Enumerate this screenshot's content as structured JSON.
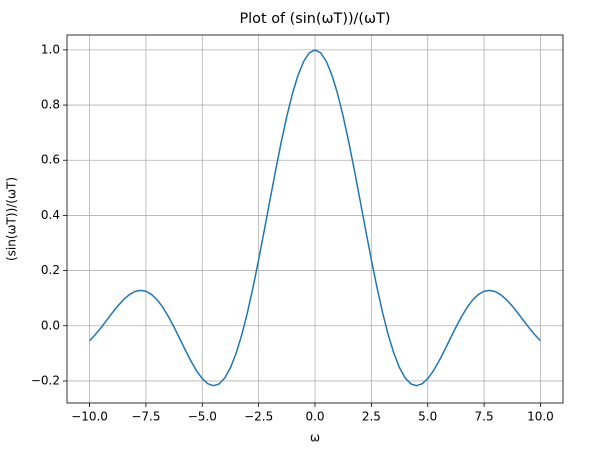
{
  "chart_data": {
    "type": "line",
    "title": "Plot of (sin(ωT))/(ωT)",
    "x_label": "ω",
    "y_label": "(sin(ωT))/(ωT)",
    "x": [
      -10,
      -9.75,
      -9.5,
      -9.25,
      -9,
      -8.75,
      -8.5,
      -8.25,
      -8,
      -7.75,
      -7.5,
      -7.25,
      -7,
      -6.75,
      -6.5,
      -6.25,
      -6,
      -5.75,
      -5.5,
      -5.25,
      -5,
      -4.75,
      -4.5,
      -4.25,
      -4,
      -3.75,
      -3.5,
      -3.25,
      -3,
      -2.75,
      -2.5,
      -2.25,
      -2,
      -1.75,
      -1.5,
      -1.25,
      -1,
      -0.75,
      -0.5,
      -0.25,
      0,
      0.25,
      0.5,
      0.75,
      1,
      1.25,
      1.5,
      1.75,
      2,
      2.25,
      2.5,
      2.75,
      3,
      3.25,
      3.5,
      3.75,
      4,
      4.25,
      4.5,
      4.75,
      5,
      5.25,
      5.5,
      5.75,
      6,
      6.25,
      6.5,
      6.75,
      7,
      7.25,
      7.5,
      7.75,
      8,
      8.25,
      8.5,
      8.75,
      9,
      9.25,
      9.5,
      9.75,
      10
    ],
    "series": [
      {
        "color": "#1f77b4",
        "values": [
          -0.0544,
          -0.0326,
          -0.0079,
          0.0188,
          0.0458,
          0.0714,
          0.0939,
          0.1118,
          0.1237,
          0.1283,
          0.1251,
          0.1135,
          0.0939,
          0.0667,
          0.0331,
          -0.0053,
          -0.0466,
          -0.0884,
          -0.1283,
          -0.1636,
          -0.1918,
          -0.2104,
          -0.2172,
          -0.2106,
          -0.1892,
          -0.1524,
          -0.1002,
          -0.0333,
          0.047,
          0.1388,
          0.2394,
          0.3458,
          0.4546,
          0.5623,
          0.665,
          0.7592,
          0.8415,
          0.9089,
          0.9589,
          0.9896,
          1,
          0.9896,
          0.9589,
          0.9089,
          0.8415,
          0.7592,
          0.665,
          0.5623,
          0.4546,
          0.3458,
          0.2394,
          0.1388,
          0.047,
          -0.0333,
          -0.1002,
          -0.1524,
          -0.1892,
          -0.2106,
          -0.2172,
          -0.2104,
          -0.1918,
          -0.1636,
          -0.1283,
          -0.0884,
          -0.0466,
          -0.0053,
          0.0331,
          0.0667,
          0.0939,
          0.1135,
          0.1251,
          0.1283,
          0.1237,
          0.1118,
          0.0939,
          0.0714,
          0.0458,
          0.0188,
          -0.0079,
          -0.0326,
          -0.0544
        ]
      }
    ],
    "xlim": [
      -11,
      11
    ],
    "ylim": [
      -0.28,
      1.054
    ],
    "xticks": [
      {
        "value": -10,
        "label": "−10.0"
      },
      {
        "value": -7.5,
        "label": "−7.5"
      },
      {
        "value": -5,
        "label": "−5.0"
      },
      {
        "value": -2.5,
        "label": "−2.5"
      },
      {
        "value": 0,
        "label": "0.0"
      },
      {
        "value": 2.5,
        "label": "2.5"
      },
      {
        "value": 5,
        "label": "5.0"
      },
      {
        "value": 7.5,
        "label": "7.5"
      },
      {
        "value": 10,
        "label": "10.0"
      }
    ],
    "yticks": [
      {
        "value": -0.2,
        "label": "−0.2"
      },
      {
        "value": 0,
        "label": "0.0"
      },
      {
        "value": 0.2,
        "label": "0.2"
      },
      {
        "value": 0.4,
        "label": "0.4"
      },
      {
        "value": 0.6,
        "label": "0.6"
      },
      {
        "value": 0.8,
        "label": "0.8"
      },
      {
        "value": 1,
        "label": "1.0"
      }
    ],
    "grid": true
  }
}
